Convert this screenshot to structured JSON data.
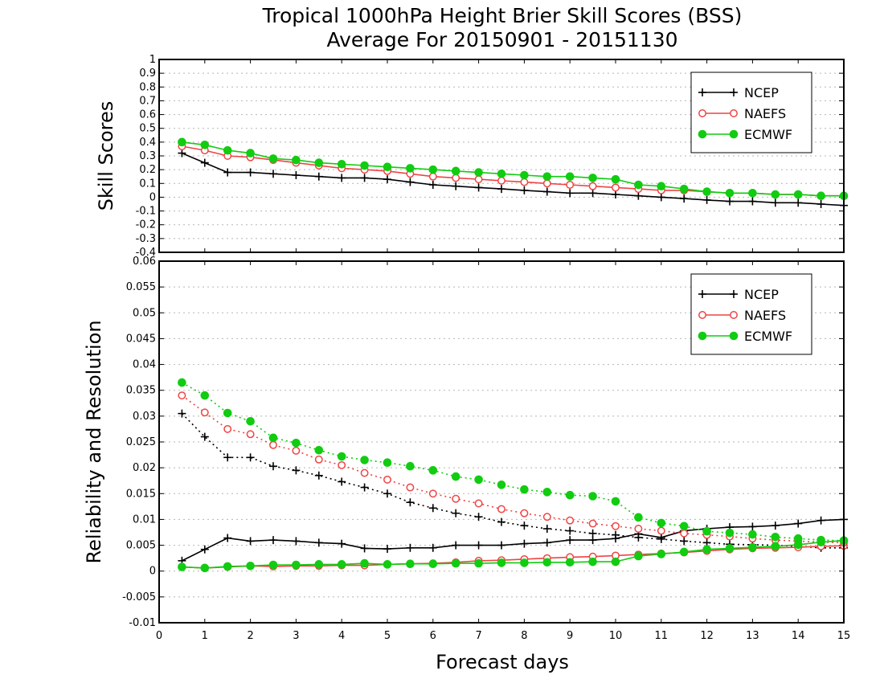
{
  "title_line1": "Tropical 1000hPa Height Brier Skill Scores (BSS)",
  "title_line2": "Average For 20150901 - 20151130",
  "xlabel": "Forecast days",
  "colors": {
    "NCEP": "#000000",
    "NAEFS": "#ee4444",
    "ECMWF": "#11cc11"
  },
  "chart_data": [
    {
      "type": "line",
      "ylabel": "Skill Scores",
      "ylim": [
        -0.4,
        1
      ],
      "yticks": [
        -0.4,
        -0.3,
        -0.2,
        -0.1,
        0,
        0.1,
        0.2,
        0.3,
        0.4,
        0.5,
        0.6,
        0.7,
        0.8,
        0.9,
        1
      ],
      "ytick_labels": [
        "-0.4",
        "-0.3",
        "-0.2",
        "-0.1",
        "0",
        "0.1",
        "0.2",
        "0.3",
        "0.4",
        "0.5",
        "0.6",
        "0.7",
        "0.8",
        "0.9",
        "1"
      ],
      "xlim": [
        0,
        15
      ],
      "grid": true,
      "legend_position": "top-right",
      "x": [
        0.5,
        1,
        1.5,
        2,
        2.5,
        3,
        3.5,
        4,
        4.5,
        5,
        5.5,
        6,
        6.5,
        7,
        7.5,
        8,
        8.5,
        9,
        9.5,
        10,
        10.5,
        11,
        11.5,
        12,
        12.5,
        13,
        13.5,
        14,
        14.5,
        15
      ],
      "series": [
        {
          "name": "NCEP",
          "marker": "plus",
          "style": "solid",
          "values": [
            0.32,
            0.25,
            0.18,
            0.18,
            0.17,
            0.16,
            0.15,
            0.14,
            0.14,
            0.13,
            0.11,
            0.09,
            0.08,
            0.07,
            0.06,
            0.05,
            0.04,
            0.03,
            0.03,
            0.02,
            0.01,
            0.0,
            -0.01,
            -0.02,
            -0.03,
            -0.03,
            -0.04,
            -0.04,
            -0.05,
            -0.06
          ]
        },
        {
          "name": "NAEFS",
          "marker": "open-circle",
          "style": "solid",
          "values": [
            0.37,
            0.34,
            0.3,
            0.29,
            0.27,
            0.25,
            0.23,
            0.21,
            0.2,
            0.19,
            0.17,
            0.15,
            0.14,
            0.13,
            0.12,
            0.11,
            0.1,
            0.09,
            0.08,
            0.07,
            0.06,
            0.05,
            0.05,
            0.04,
            0.03,
            0.03,
            0.02,
            0.02,
            0.01,
            0.01
          ]
        },
        {
          "name": "ECMWF",
          "marker": "filled-circle",
          "style": "solid",
          "values": [
            0.4,
            0.38,
            0.34,
            0.32,
            0.28,
            0.27,
            0.25,
            0.24,
            0.23,
            0.22,
            0.21,
            0.2,
            0.19,
            0.18,
            0.17,
            0.16,
            0.15,
            0.15,
            0.14,
            0.13,
            0.09,
            0.08,
            0.06,
            0.04,
            0.03,
            0.03,
            0.02,
            0.02,
            0.01,
            0.01
          ]
        }
      ]
    },
    {
      "type": "line",
      "ylabel": "Reliability and Resolution",
      "ylim": [
        -0.01,
        0.06
      ],
      "yticks": [
        -0.01,
        -0.005,
        0,
        0.005,
        0.01,
        0.015,
        0.02,
        0.025,
        0.03,
        0.035,
        0.04,
        0.045,
        0.05,
        0.055,
        0.06
      ],
      "ytick_labels": [
        "-0.01",
        "-0.005",
        "0",
        "0.005",
        "0.01",
        "0.015",
        "0.02",
        "0.025",
        "0.03",
        "0.035",
        "0.04",
        "0.045",
        "0.05",
        "0.055",
        "0.06"
      ],
      "xlim": [
        0,
        15
      ],
      "xticks": [
        0,
        1,
        2,
        3,
        4,
        5,
        6,
        7,
        8,
        9,
        10,
        11,
        12,
        13,
        14,
        15
      ],
      "xtick_labels": [
        "0",
        "1",
        "2",
        "3",
        "4",
        "5",
        "6",
        "7",
        "8",
        "9",
        "10",
        "11",
        "12",
        "13",
        "14",
        "15"
      ],
      "grid": true,
      "legend_position": "top-right",
      "x": [
        0.5,
        1,
        1.5,
        2,
        2.5,
        3,
        3.5,
        4,
        4.5,
        5,
        5.5,
        6,
        6.5,
        7,
        7.5,
        8,
        8.5,
        9,
        9.5,
        10,
        10.5,
        11,
        11.5,
        12,
        12.5,
        13,
        13.5,
        14,
        14.5,
        15
      ],
      "series": [
        {
          "name": "NCEP",
          "quantity": "reliability",
          "marker": "plus",
          "style": "solid",
          "values": [
            0.002,
            0.0042,
            0.0064,
            0.0058,
            0.006,
            0.0058,
            0.0055,
            0.0053,
            0.0044,
            0.0043,
            0.0045,
            0.0045,
            0.005,
            0.005,
            0.005,
            0.0053,
            0.0055,
            0.006,
            0.006,
            0.0063,
            0.0072,
            0.0065,
            0.0078,
            0.0082,
            0.0085,
            0.0086,
            0.0088,
            0.0092,
            0.0098,
            0.01
          ]
        },
        {
          "name": "NCEP",
          "quantity": "resolution",
          "marker": "plus",
          "style": "dotted",
          "values": [
            0.0305,
            0.026,
            0.022,
            0.022,
            0.0203,
            0.0195,
            0.0185,
            0.0173,
            0.0162,
            0.015,
            0.0133,
            0.0122,
            0.0112,
            0.0105,
            0.0095,
            0.0088,
            0.0082,
            0.0078,
            0.0073,
            0.007,
            0.0065,
            0.0062,
            0.0058,
            0.0055,
            0.0052,
            0.0051,
            0.005,
            0.0048,
            0.0045,
            0.0045
          ]
        },
        {
          "name": "NAEFS",
          "quantity": "reliability",
          "marker": "open-circle",
          "style": "solid",
          "values": [
            0.0008,
            0.0006,
            0.0008,
            0.001,
            0.0009,
            0.001,
            0.001,
            0.0011,
            0.0011,
            0.0013,
            0.0014,
            0.0015,
            0.0017,
            0.002,
            0.0021,
            0.0023,
            0.0025,
            0.0027,
            0.0028,
            0.003,
            0.0032,
            0.0034,
            0.0036,
            0.0039,
            0.0042,
            0.0044,
            0.0045,
            0.0046,
            0.0048,
            0.0049
          ]
        },
        {
          "name": "NAEFS",
          "quantity": "resolution",
          "marker": "open-circle",
          "style": "dotted",
          "values": [
            0.034,
            0.0307,
            0.0275,
            0.0265,
            0.0244,
            0.0233,
            0.0216,
            0.0205,
            0.019,
            0.0177,
            0.0162,
            0.015,
            0.014,
            0.0131,
            0.012,
            0.0112,
            0.0105,
            0.0098,
            0.0092,
            0.0087,
            0.0082,
            0.0078,
            0.0073,
            0.007,
            0.0067,
            0.0063,
            0.006,
            0.0058,
            0.0056,
            0.0055
          ]
        },
        {
          "name": "ECMWF",
          "quantity": "reliability",
          "marker": "filled-circle",
          "style": "solid",
          "values": [
            0.0008,
            0.0006,
            0.0009,
            0.001,
            0.0012,
            0.0012,
            0.0013,
            0.0013,
            0.0015,
            0.0013,
            0.0014,
            0.0014,
            0.0015,
            0.0015,
            0.0016,
            0.0016,
            0.0017,
            0.0017,
            0.0018,
            0.0018,
            0.0029,
            0.0033,
            0.0037,
            0.0042,
            0.0044,
            0.0046,
            0.0048,
            0.0051,
            0.0056,
            0.0059
          ]
        },
        {
          "name": "ECMWF",
          "quantity": "resolution",
          "marker": "filled-circle",
          "style": "dotted",
          "values": [
            0.0365,
            0.034,
            0.0306,
            0.029,
            0.0258,
            0.0248,
            0.0234,
            0.0222,
            0.0215,
            0.021,
            0.0203,
            0.0195,
            0.0183,
            0.0177,
            0.0167,
            0.0158,
            0.0153,
            0.0147,
            0.0145,
            0.0135,
            0.0104,
            0.0093,
            0.0087,
            0.0077,
            0.0074,
            0.0071,
            0.0066,
            0.0063,
            0.006,
            0.0059
          ]
        }
      ]
    }
  ]
}
